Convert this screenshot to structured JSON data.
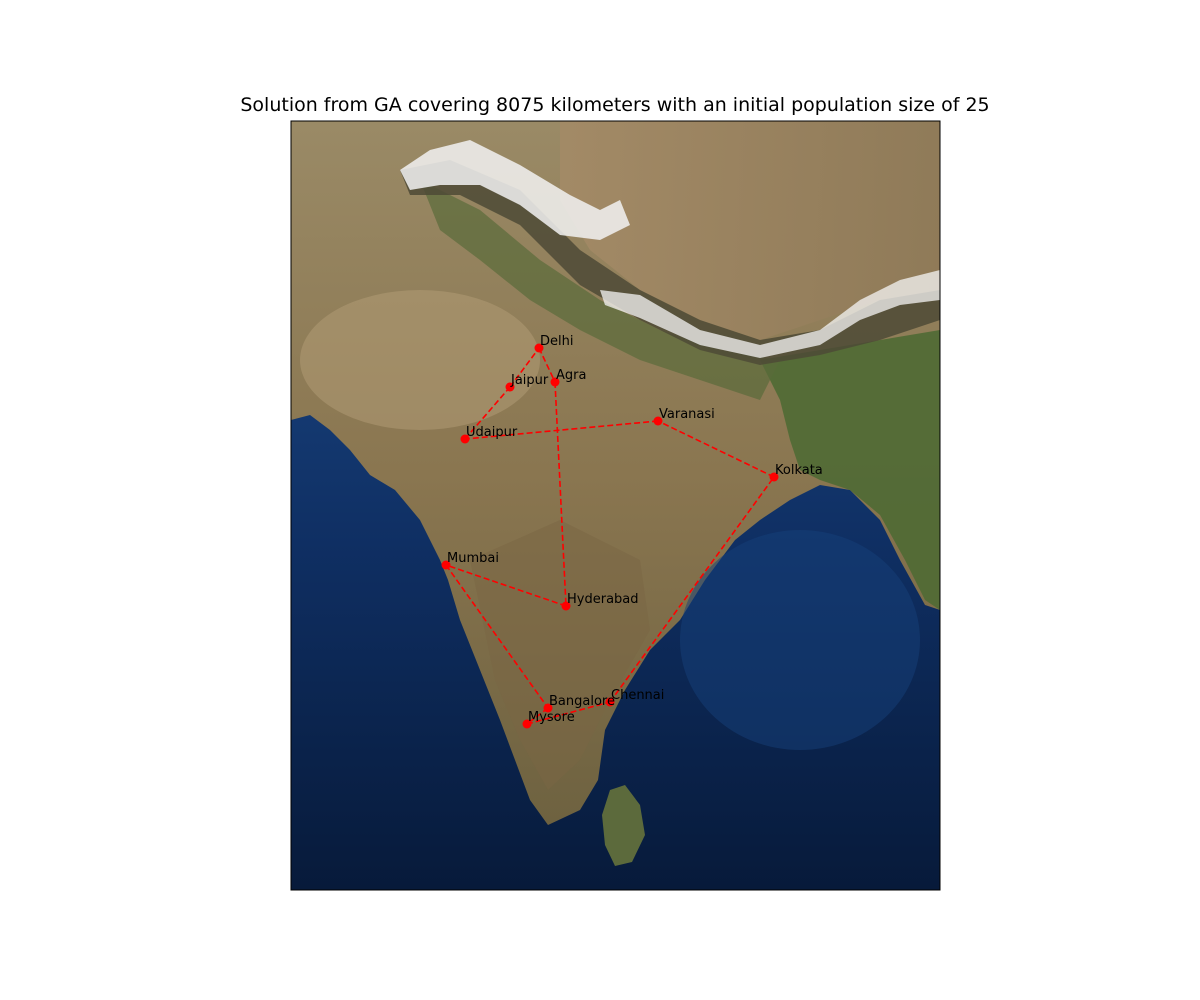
{
  "title": "Solution from GA covering 8075 kilometers with an initial population size of 25",
  "colors": {
    "route": "#ff0000",
    "marker": "#ff0000",
    "ocean_deep": "#071a3a",
    "ocean_shallow": "#1f4f8f",
    "land": "#8a7a58",
    "land_green": "#4e6633",
    "mountain": "#6b5a42",
    "snow": "#f2f2f2",
    "frame": "#000000"
  },
  "route_style": "dashed",
  "cities": [
    {
      "name": "Delhi"
    },
    {
      "name": "Jaipur"
    },
    {
      "name": "Agra"
    },
    {
      "name": "Varanasi"
    },
    {
      "name": "Udaipur"
    },
    {
      "name": "Kolkata"
    },
    {
      "name": "Mumbai"
    },
    {
      "name": "Hyderabad"
    },
    {
      "name": "Bangalore"
    },
    {
      "name": "Chennai"
    },
    {
      "name": "Mysore"
    }
  ],
  "route_order": [
    "Delhi",
    "Agra",
    "Hyderabad",
    "Mumbai",
    "Bangalore",
    "Mysore",
    "Chennai",
    "Kolkata",
    "Varanasi",
    "Udaipur",
    "Jaipur",
    "Delhi"
  ]
}
